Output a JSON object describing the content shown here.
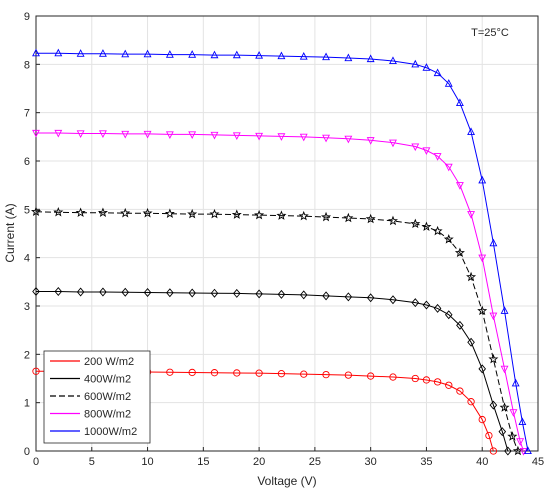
{
  "chart_data": {
    "type": "line",
    "title": "",
    "xlabel": "Voltage (V)",
    "ylabel": "Current (A)",
    "xlim": [
      0,
      45
    ],
    "ylim": [
      0,
      9
    ],
    "xticks": [
      "0",
      "5",
      "10",
      "15",
      "20",
      "25",
      "30",
      "35",
      "40",
      "45"
    ],
    "yticks": [
      "0",
      "1",
      "2",
      "3",
      "4",
      "5",
      "6",
      "7",
      "8",
      "9"
    ],
    "grid": true,
    "legend_position": "bottom-left",
    "annotation": "T=25°C",
    "series": [
      {
        "name": "200 W/m2",
        "color": "#ff0000",
        "dashed": false,
        "marker": "circle",
        "points": [
          [
            0,
            1.65
          ],
          [
            2,
            1.65
          ],
          [
            4,
            1.645
          ],
          [
            6,
            1.64
          ],
          [
            8,
            1.64
          ],
          [
            10,
            1.635
          ],
          [
            12,
            1.63
          ],
          [
            14,
            1.625
          ],
          [
            16,
            1.62
          ],
          [
            18,
            1.615
          ],
          [
            20,
            1.61
          ],
          [
            22,
            1.6
          ],
          [
            24,
            1.59
          ],
          [
            26,
            1.58
          ],
          [
            28,
            1.57
          ],
          [
            30,
            1.55
          ],
          [
            32,
            1.53
          ],
          [
            34,
            1.5
          ],
          [
            35,
            1.47
          ],
          [
            36,
            1.43
          ],
          [
            37,
            1.36
          ],
          [
            38,
            1.24
          ],
          [
            39,
            1.02
          ],
          [
            40,
            0.65
          ],
          [
            40.6,
            0.32
          ],
          [
            41.0,
            0.0
          ]
        ]
      },
      {
        "name": "400W/m2",
        "color": "#000000",
        "dashed": false,
        "marker": "diamond",
        "points": [
          [
            0,
            3.3
          ],
          [
            2,
            3.3
          ],
          [
            4,
            3.29
          ],
          [
            6,
            3.29
          ],
          [
            8,
            3.285
          ],
          [
            10,
            3.28
          ],
          [
            12,
            3.275
          ],
          [
            14,
            3.27
          ],
          [
            16,
            3.265
          ],
          [
            18,
            3.26
          ],
          [
            20,
            3.25
          ],
          [
            22,
            3.24
          ],
          [
            24,
            3.23
          ],
          [
            26,
            3.21
          ],
          [
            28,
            3.19
          ],
          [
            30,
            3.17
          ],
          [
            32,
            3.13
          ],
          [
            34,
            3.07
          ],
          [
            35,
            3.02
          ],
          [
            36,
            2.95
          ],
          [
            37,
            2.82
          ],
          [
            38,
            2.6
          ],
          [
            39,
            2.25
          ],
          [
            40,
            1.7
          ],
          [
            41,
            0.95
          ],
          [
            41.8,
            0.4
          ],
          [
            42.3,
            0.0
          ]
        ]
      },
      {
        "name": "600W/m2",
        "color": "#000000",
        "dashed": true,
        "marker": "star",
        "points": [
          [
            0,
            4.95
          ],
          [
            2,
            4.94
          ],
          [
            4,
            4.93
          ],
          [
            6,
            4.93
          ],
          [
            8,
            4.92
          ],
          [
            10,
            4.92
          ],
          [
            12,
            4.91
          ],
          [
            14,
            4.9
          ],
          [
            16,
            4.9
          ],
          [
            18,
            4.89
          ],
          [
            20,
            4.88
          ],
          [
            22,
            4.87
          ],
          [
            24,
            4.86
          ],
          [
            26,
            4.84
          ],
          [
            28,
            4.82
          ],
          [
            30,
            4.8
          ],
          [
            32,
            4.76
          ],
          [
            34,
            4.7
          ],
          [
            35,
            4.64
          ],
          [
            36,
            4.55
          ],
          [
            37,
            4.38
          ],
          [
            38,
            4.1
          ],
          [
            39,
            3.6
          ],
          [
            40,
            2.9
          ],
          [
            41,
            1.9
          ],
          [
            42,
            0.9
          ],
          [
            42.7,
            0.3
          ],
          [
            43.2,
            0.0
          ]
        ]
      },
      {
        "name": "800W/m2",
        "color": "#ff00ff",
        "dashed": false,
        "marker": "triangle-down",
        "points": [
          [
            0,
            6.58
          ],
          [
            2,
            6.58
          ],
          [
            4,
            6.57
          ],
          [
            6,
            6.57
          ],
          [
            8,
            6.56
          ],
          [
            10,
            6.56
          ],
          [
            12,
            6.55
          ],
          [
            14,
            6.55
          ],
          [
            16,
            6.54
          ],
          [
            18,
            6.53
          ],
          [
            20,
            6.52
          ],
          [
            22,
            6.51
          ],
          [
            24,
            6.5
          ],
          [
            26,
            6.48
          ],
          [
            28,
            6.46
          ],
          [
            30,
            6.43
          ],
          [
            32,
            6.38
          ],
          [
            34,
            6.3
          ],
          [
            35,
            6.22
          ],
          [
            36,
            6.1
          ],
          [
            37,
            5.88
          ],
          [
            38,
            5.5
          ],
          [
            39,
            4.9
          ],
          [
            40,
            4.0
          ],
          [
            41,
            2.8
          ],
          [
            42,
            1.7
          ],
          [
            42.8,
            0.8
          ],
          [
            43.4,
            0.2
          ],
          [
            43.7,
            0.0
          ]
        ]
      },
      {
        "name": "1000W/m2",
        "color": "#0000ff",
        "dashed": false,
        "marker": "triangle-up",
        "points": [
          [
            0,
            8.23
          ],
          [
            2,
            8.23
          ],
          [
            4,
            8.22
          ],
          [
            6,
            8.22
          ],
          [
            8,
            8.21
          ],
          [
            10,
            8.21
          ],
          [
            12,
            8.2
          ],
          [
            14,
            8.2
          ],
          [
            16,
            8.19
          ],
          [
            18,
            8.19
          ],
          [
            20,
            8.18
          ],
          [
            22,
            8.17
          ],
          [
            24,
            8.16
          ],
          [
            26,
            8.15
          ],
          [
            28,
            8.13
          ],
          [
            30,
            8.11
          ],
          [
            32,
            8.07
          ],
          [
            34,
            8.0
          ],
          [
            35,
            7.93
          ],
          [
            36,
            7.82
          ],
          [
            37,
            7.6
          ],
          [
            38,
            7.2
          ],
          [
            39,
            6.6
          ],
          [
            40,
            5.6
          ],
          [
            41,
            4.3
          ],
          [
            42,
            2.9
          ],
          [
            43,
            1.4
          ],
          [
            43.6,
            0.6
          ],
          [
            44.1,
            0.0
          ]
        ]
      }
    ]
  }
}
